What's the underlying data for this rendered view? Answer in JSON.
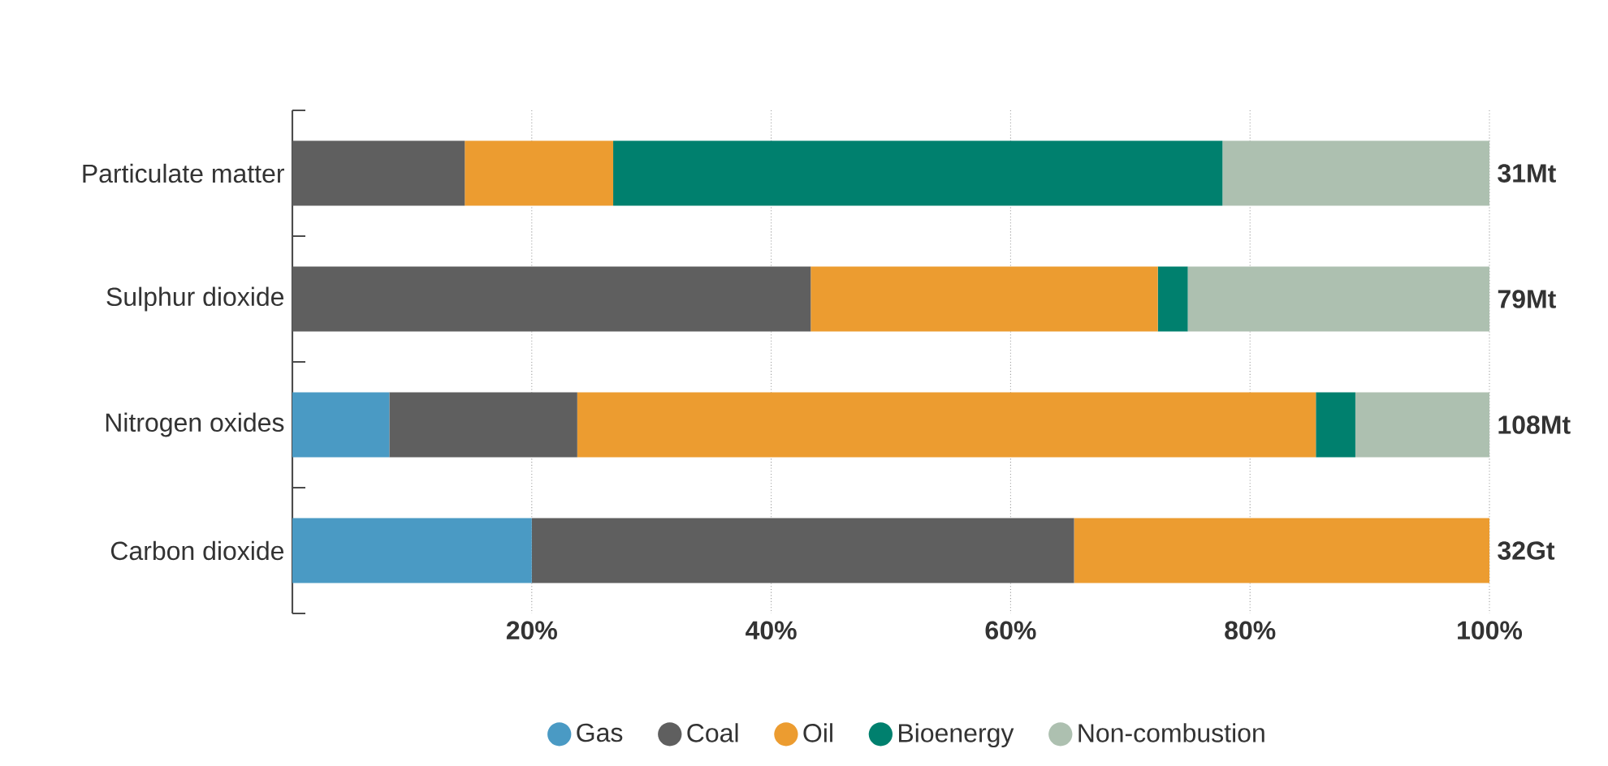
{
  "chart_data": {
    "type": "bar",
    "orientation": "horizontal",
    "stacked": true,
    "categories": [
      "Particulate matter",
      "Sulphur dioxide",
      "Nitrogen oxides",
      "Carbon dioxide"
    ],
    "series": [
      {
        "name": "Gas",
        "color": "#4a9ac4",
        "values": [
          0,
          0,
          8.1,
          20.0
        ]
      },
      {
        "name": "Coal",
        "color": "#5f5f5f",
        "values": [
          14.4,
          43.3,
          15.7,
          45.3
        ]
      },
      {
        "name": "Oil",
        "color": "#ec9c30",
        "values": [
          12.4,
          29.0,
          61.7,
          34.7
        ]
      },
      {
        "name": "Bioenergy",
        "color": "#00806e",
        "values": [
          50.9,
          2.5,
          3.3,
          0
        ]
      },
      {
        "name": "Non-combustion",
        "color": "#adc0b0",
        "values": [
          22.3,
          25.2,
          11.2,
          0
        ]
      }
    ],
    "xlim": [
      0,
      100
    ],
    "xticks": [
      {
        "value": 20,
        "label": "20%"
      },
      {
        "value": 40,
        "label": "40%"
      },
      {
        "value": 60,
        "label": "60%"
      },
      {
        "value": 80,
        "label": "80%"
      },
      {
        "value": 100,
        "label": "100%"
      }
    ],
    "annotations": [
      "31Mt",
      "79Mt",
      "108Mt",
      "32Gt"
    ],
    "grid": "x",
    "legend": "bottom"
  }
}
